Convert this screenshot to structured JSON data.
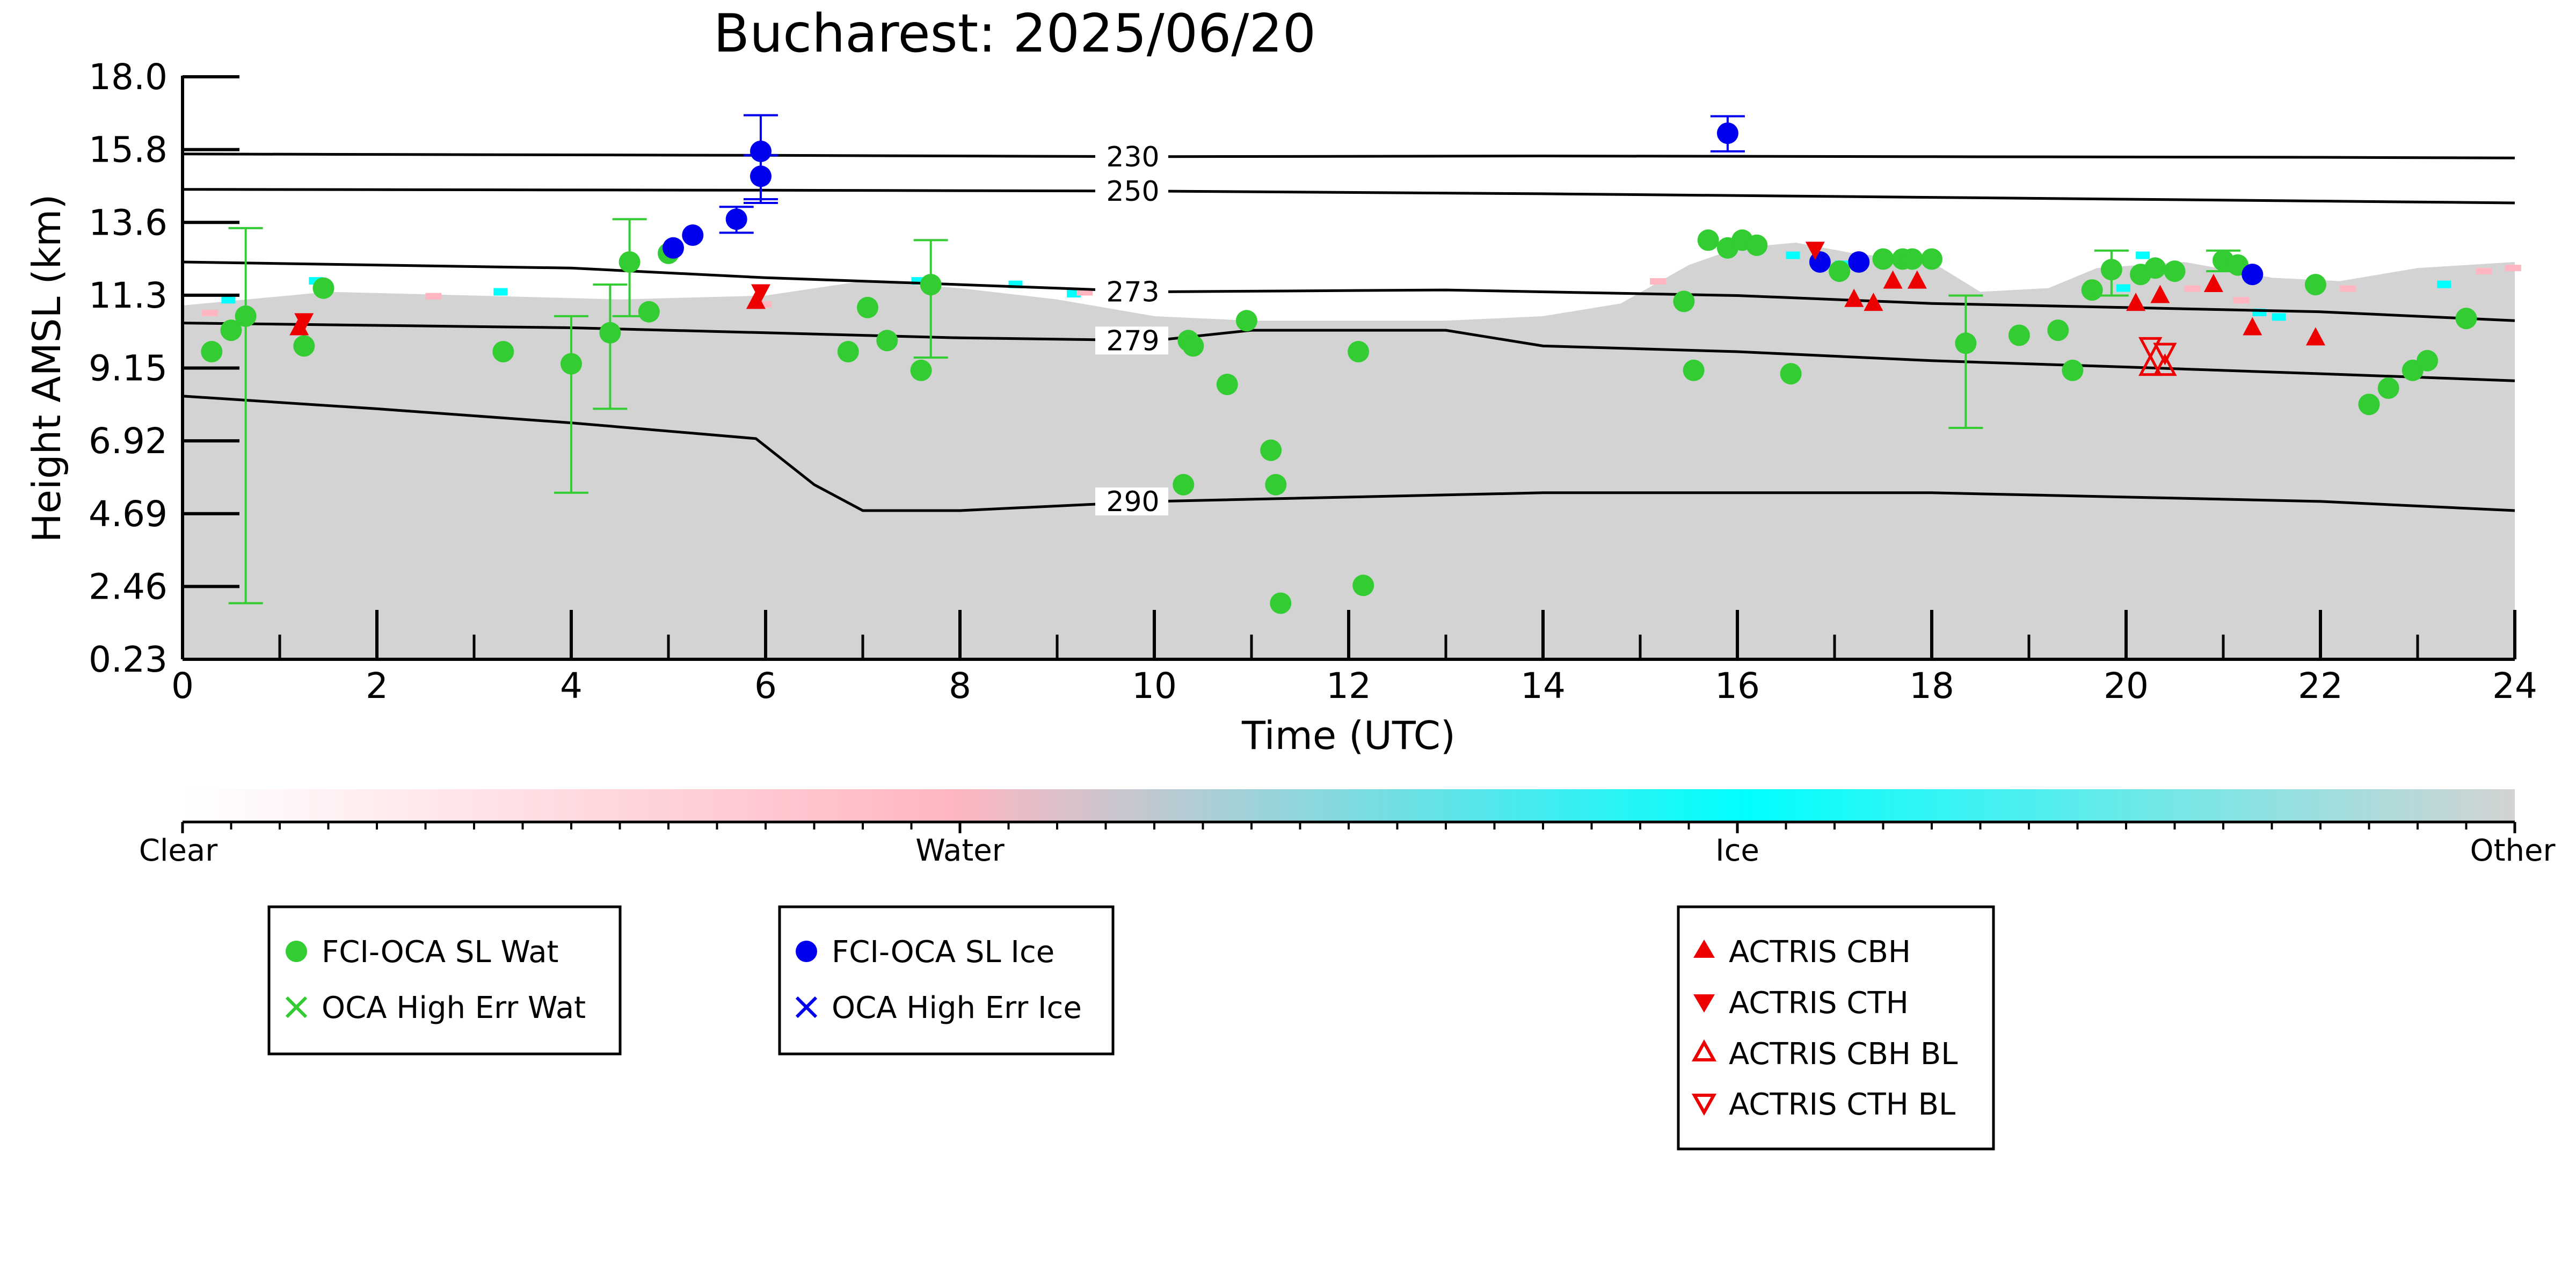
{
  "chart_data": {
    "type": "scatter",
    "title": "Bucharest: 2025/06/20",
    "xlabel": "Time (UTC)",
    "ylabel": "Height AMSL (km)",
    "xlim": [
      0,
      24
    ],
    "ylim": [
      0.23,
      18.0
    ],
    "y_scale": "log",
    "x_ticks": [
      "0",
      "2",
      "4",
      "6",
      "8",
      "10",
      "12",
      "14",
      "16",
      "18",
      "20",
      "22",
      "24"
    ],
    "y_ticks": [
      "0.23",
      "2.46",
      "4.69",
      "6.92",
      "9.15",
      "11.3",
      "13.6",
      "15.8",
      "18.0"
    ],
    "grid": false,
    "colors": {
      "water": "#33cc33",
      "ice": "#0000ee",
      "actris": "#ee0000",
      "background": "#d3d3d3",
      "colorbar_stops": [
        "#ffffff",
        "#ffb6c1",
        "#00ffff",
        "#d3d3d3"
      ]
    },
    "isotherms": [
      {
        "label": "230",
        "x": [
          0,
          6,
          10,
          14,
          18,
          22,
          24
        ],
        "y": [
          10.1,
          10.0,
          9.9,
          9.95,
          9.9,
          9.85,
          9.8
        ]
      },
      {
        "label": "250",
        "x": [
          0,
          6,
          10,
          14,
          18,
          22,
          24
        ],
        "y": [
          7.75,
          7.7,
          7.65,
          7.5,
          7.3,
          7.1,
          7.0
        ]
      },
      {
        "label": "273",
        "x": [
          0,
          4,
          6,
          8,
          10,
          13,
          16,
          18,
          20,
          22,
          24
        ],
        "y": [
          4.5,
          4.3,
          4.0,
          3.8,
          3.6,
          3.65,
          3.5,
          3.3,
          3.2,
          3.1,
          2.9
        ]
      },
      {
        "label": "279",
        "x": [
          0,
          4,
          6,
          8,
          10,
          11,
          13,
          14,
          16,
          18,
          20,
          22,
          24
        ],
        "y": [
          2.85,
          2.75,
          2.65,
          2.55,
          2.5,
          2.7,
          2.7,
          2.4,
          2.3,
          2.15,
          2.05,
          1.95,
          1.85
        ]
      },
      {
        "label": "290",
        "x": [
          0,
          2,
          4,
          5.9,
          6.5,
          7,
          8,
          10,
          14,
          18,
          22,
          24
        ],
        "y": [
          1.65,
          1.5,
          1.35,
          1.2,
          0.85,
          0.7,
          0.7,
          0.75,
          0.8,
          0.8,
          0.75,
          0.7
        ]
      }
    ],
    "series": [
      {
        "name": "FCI-OCA SL Wat",
        "marker": "circle",
        "color": "#33cc33",
        "points": [
          [
            0.3,
            2.3,
            null,
            null
          ],
          [
            0.5,
            2.7,
            null,
            null
          ],
          [
            0.65,
            3.0,
            0.35,
            5.8
          ],
          [
            1.25,
            2.4,
            null,
            null
          ],
          [
            1.45,
            3.7,
            null,
            null
          ],
          [
            3.3,
            2.3,
            null,
            null
          ],
          [
            4.0,
            2.1,
            0.8,
            3.0
          ],
          [
            4.4,
            2.65,
            1.5,
            3.8
          ],
          [
            4.6,
            4.5,
            3.0,
            6.2
          ],
          [
            4.8,
            3.1,
            null,
            null
          ],
          [
            5.0,
            4.8,
            null,
            null
          ],
          [
            6.85,
            2.3,
            null,
            null
          ],
          [
            7.05,
            3.2,
            null,
            null
          ],
          [
            7.25,
            2.5,
            null,
            null
          ],
          [
            7.6,
            2.0,
            null,
            null
          ],
          [
            7.7,
            3.8,
            2.2,
            5.3
          ],
          [
            10.3,
            0.85,
            null,
            null
          ],
          [
            10.35,
            2.5,
            null,
            null
          ],
          [
            10.4,
            2.4,
            null,
            null
          ],
          [
            10.75,
            1.8,
            null,
            null
          ],
          [
            10.95,
            2.9,
            null,
            null
          ],
          [
            11.2,
            1.1,
            null,
            null
          ],
          [
            11.25,
            0.85,
            null,
            null
          ],
          [
            11.3,
            0.35,
            null,
            null
          ],
          [
            12.1,
            2.3,
            null,
            null
          ],
          [
            12.15,
            0.4,
            null,
            null
          ],
          [
            15.45,
            3.35,
            null,
            null
          ],
          [
            15.55,
            2.0,
            null,
            null
          ],
          [
            15.7,
            5.3,
            null,
            null
          ],
          [
            15.9,
            5.0,
            null,
            null
          ],
          [
            16.05,
            5.3,
            null,
            null
          ],
          [
            16.2,
            5.1,
            null,
            null
          ],
          [
            16.55,
            1.95,
            null,
            null
          ],
          [
            17.05,
            4.2,
            null,
            null
          ],
          [
            17.5,
            4.6,
            null,
            null
          ],
          [
            17.7,
            4.6,
            null,
            null
          ],
          [
            17.8,
            4.6,
            null,
            null
          ],
          [
            18.0,
            4.6,
            null,
            null
          ],
          [
            18.35,
            2.45,
            1.3,
            3.5
          ],
          [
            18.9,
            2.6,
            null,
            null
          ],
          [
            19.3,
            2.7,
            null,
            null
          ],
          [
            19.45,
            2.0,
            null,
            null
          ],
          [
            19.65,
            3.65,
            null,
            null
          ],
          [
            19.85,
            4.25,
            3.5,
            4.9
          ],
          [
            20.15,
            4.1,
            null,
            null
          ],
          [
            20.3,
            4.3,
            null,
            null
          ],
          [
            20.5,
            4.2,
            null,
            null
          ],
          [
            21.0,
            4.55,
            4.2,
            4.9
          ],
          [
            21.15,
            4.4,
            null,
            null
          ],
          [
            21.95,
            3.8,
            null,
            null
          ],
          [
            22.5,
            1.55,
            null,
            null
          ],
          [
            22.7,
            1.75,
            null,
            null
          ],
          [
            22.95,
            2.0,
            null,
            null
          ],
          [
            23.1,
            2.15,
            null,
            null
          ],
          [
            23.5,
            2.95,
            null,
            null
          ]
        ]
      },
      {
        "name": "FCI-OCA SL Ice",
        "marker": "circle",
        "color": "#0000ee",
        "points": [
          [
            5.05,
            5.0,
            null,
            null
          ],
          [
            5.25,
            5.5,
            null,
            null
          ],
          [
            5.7,
            6.2,
            5.6,
            6.8
          ],
          [
            5.95,
            10.3,
            7.0,
            13.5
          ],
          [
            5.95,
            8.55,
            7.2,
            10.0
          ],
          [
            15.9,
            11.8,
            10.3,
            13.4
          ],
          [
            16.85,
            4.5,
            null,
            null
          ],
          [
            17.25,
            4.5,
            null,
            null
          ],
          [
            21.3,
            4.1,
            null,
            null
          ]
        ]
      },
      {
        "name": "OCA High Err Wat",
        "marker": "x",
        "color": "#33cc33",
        "points": []
      },
      {
        "name": "OCA High Err Ice",
        "marker": "x",
        "color": "#0000ee",
        "points": []
      },
      {
        "name": "ACTRIS CBH",
        "marker": "triangle-up",
        "color": "#ee0000",
        "points": [
          [
            1.2,
            2.75
          ],
          [
            5.9,
            3.35
          ],
          [
            17.2,
            3.4
          ],
          [
            17.4,
            3.3
          ],
          [
            17.6,
            3.9
          ],
          [
            17.85,
            3.9
          ],
          [
            20.1,
            3.3
          ],
          [
            20.35,
            3.5
          ],
          [
            20.9,
            3.8
          ],
          [
            21.3,
            2.75
          ],
          [
            21.95,
            2.55
          ]
        ]
      },
      {
        "name": "ACTRIS CTH",
        "marker": "triangle-down",
        "color": "#ee0000",
        "points": [
          [
            1.25,
            2.9
          ],
          [
            5.95,
            3.6
          ],
          [
            16.8,
            4.95
          ]
        ]
      },
      {
        "name": "ACTRIS CBH BL",
        "marker": "triangle-up-open",
        "color": "#ee0000",
        "points": [
          [
            20.25,
            2.05
          ],
          [
            20.4,
            2.05
          ]
        ]
      },
      {
        "name": "ACTRIS CTH BL",
        "marker": "triangle-down-open",
        "color": "#ee0000",
        "points": [
          [
            20.25,
            2.4
          ],
          [
            20.4,
            2.3
          ]
        ]
      }
    ]
  },
  "colorbar": {
    "labels": [
      "Clear",
      "Water",
      "Ice",
      "Other"
    ]
  },
  "legend_boxes": [
    [
      "FCI-OCA SL Wat",
      "OCA High Err Wat"
    ],
    [
      "FCI-OCA SL Ice",
      "OCA High Err Ice"
    ],
    [
      "ACTRIS CBH",
      "ACTRIS CTH",
      "ACTRIS CBH BL",
      "ACTRIS CTH BL"
    ]
  ]
}
